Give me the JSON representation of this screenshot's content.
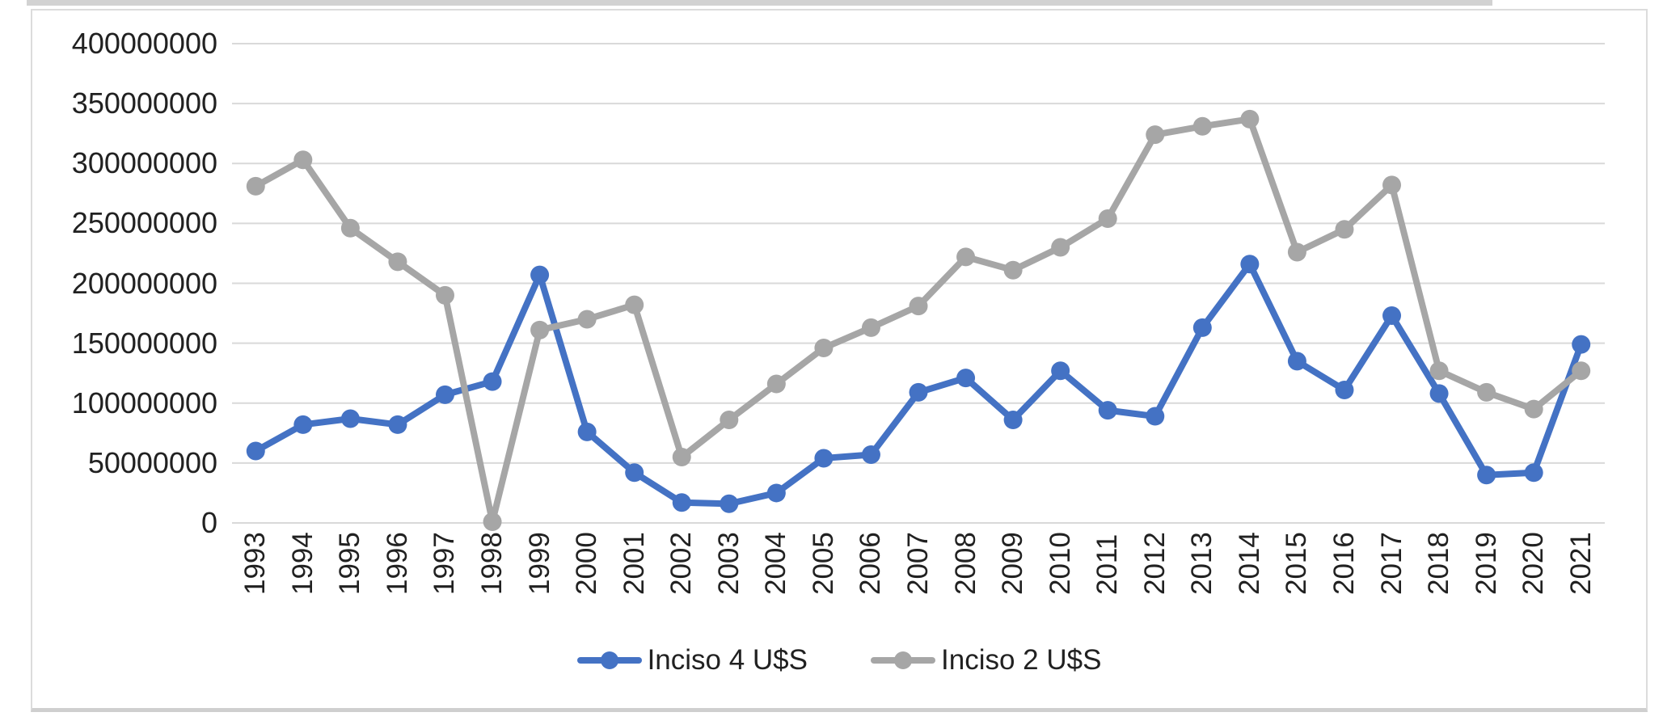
{
  "chart_data": {
    "type": "line",
    "title": "",
    "xlabel": "",
    "ylabel": "",
    "categories": [
      "1993",
      "1994",
      "1995",
      "1996",
      "1997",
      "1998",
      "1999",
      "2000",
      "2001",
      "2002",
      "2003",
      "2004",
      "2005",
      "2006",
      "2007",
      "2008",
      "2009",
      "2010",
      "2011",
      "2012",
      "2013",
      "2014",
      "2015",
      "2016",
      "2017",
      "2018",
      "2019",
      "2020",
      "2021"
    ],
    "series": [
      {
        "name": "Inciso 4 U$S",
        "color": "#4472C4",
        "marker": "circle",
        "values": [
          60000000,
          82000000,
          87000000,
          82000000,
          107000000,
          118000000,
          207000000,
          76000000,
          42000000,
          17000000,
          16000000,
          25000000,
          54000000,
          57000000,
          109000000,
          121000000,
          86000000,
          127000000,
          94000000,
          89000000,
          163000000,
          216000000,
          135000000,
          111000000,
          173000000,
          108000000,
          40000000,
          42000000,
          149000000
        ]
      },
      {
        "name": "Inciso 2 U$S",
        "color": "#A6A6A6",
        "marker": "circle",
        "values": [
          281000000,
          303000000,
          246000000,
          218000000,
          190000000,
          1000000,
          161000000,
          170000000,
          182000000,
          55000000,
          86000000,
          116000000,
          146000000,
          163000000,
          181000000,
          222000000,
          211000000,
          230000000,
          254000000,
          324000000,
          331000000,
          337000000,
          226000000,
          245000000,
          282000000,
          127000000,
          109000000,
          95000000,
          127000000
        ]
      }
    ],
    "y_axis": {
      "min": 0,
      "max": 400000000,
      "step": 50000000,
      "tick_labels": [
        "400000000",
        "350000000",
        "300000000",
        "250000000",
        "200000000",
        "150000000",
        "100000000",
        "50000000",
        "0"
      ]
    },
    "x_axis": {
      "label_rotation_deg": -90
    },
    "legend": {
      "position": "bottom"
    },
    "grid": "horizontal",
    "colors": {
      "gridline": "#D9D9D9",
      "axis_text": "#212121",
      "chart_border": "#DCDCDC",
      "background": "#FFFFFF"
    }
  }
}
